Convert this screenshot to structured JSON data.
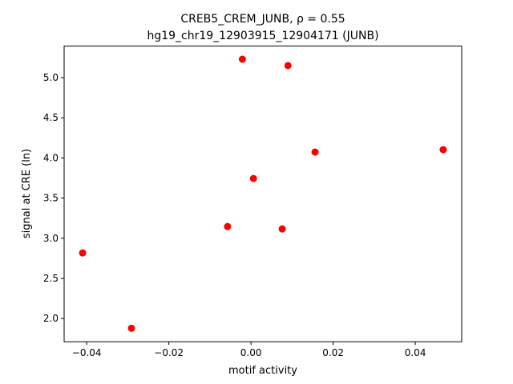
{
  "chart_data": {
    "type": "scatter",
    "title": [
      "CREB5_CREM_JUNB, ρ = 0.55",
      "hg19_chr19_12903915_12904171 (JUNB)"
    ],
    "x_label": "motif activity",
    "y_label": "signal at CRE (ln)",
    "color": "#ff0000",
    "x": [
      -0.041,
      -0.0291,
      -0.0057,
      -0.0021,
      0.0006,
      0.0076,
      0.009,
      0.0156,
      0.0468
    ],
    "values": [
      2.817,
      1.879,
      3.146,
      5.229,
      3.744,
      3.116,
      5.15,
      4.073,
      4.103
    ],
    "xlim": [
      -0.0455,
      0.0513
    ],
    "ylim": [
      1.711,
      5.393
    ],
    "xticks": [
      {
        "value": -0.04,
        "label": "−0.04"
      },
      {
        "value": -0.02,
        "label": "−0.02"
      },
      {
        "value": 0,
        "label": "0.00"
      },
      {
        "value": 0.02,
        "label": "0.02"
      },
      {
        "value": 0.04,
        "label": "0.04"
      }
    ],
    "yticks": [
      {
        "value": 2,
        "label": "2.0"
      },
      {
        "value": 2.5,
        "label": "2.5"
      },
      {
        "value": 3,
        "label": "3.0"
      },
      {
        "value": 3.5,
        "label": "3.5"
      },
      {
        "value": 4,
        "label": "4.0"
      },
      {
        "value": 4.5,
        "label": "4.5"
      },
      {
        "value": 5,
        "label": "5.0"
      }
    ]
  }
}
